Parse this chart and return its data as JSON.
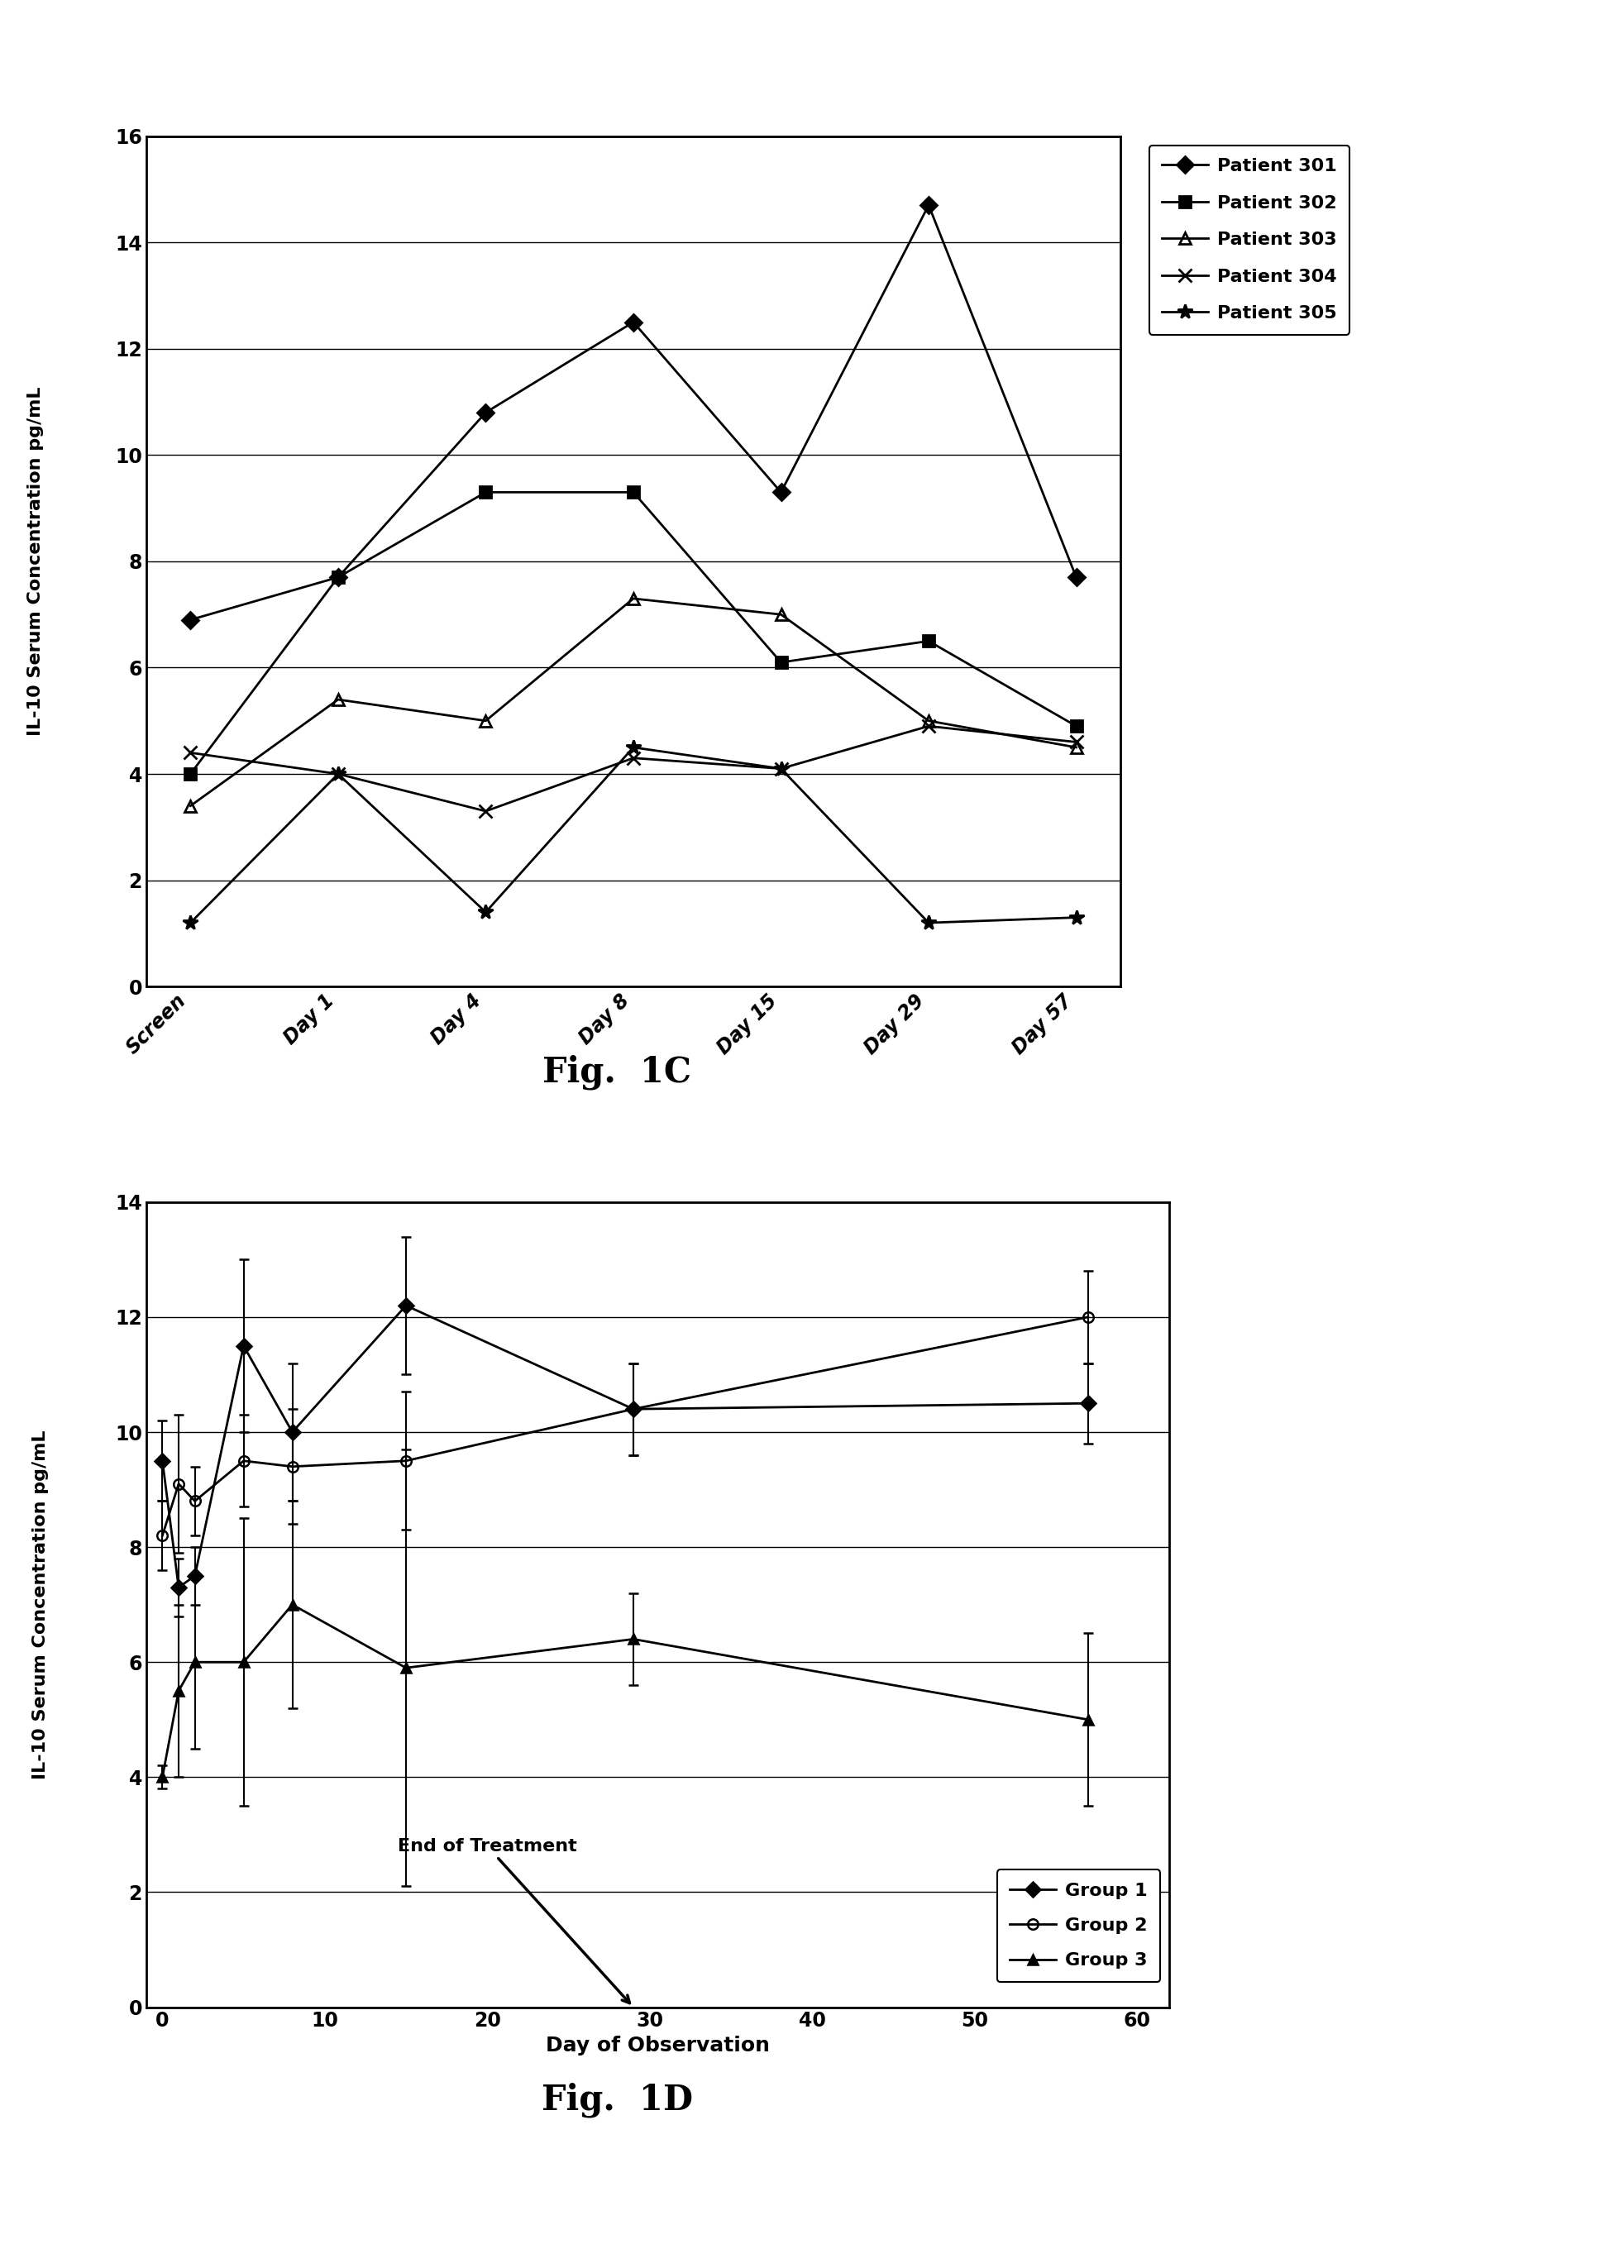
{
  "fig1c": {
    "title": "Fig.  1C",
    "ylabel": "IL-10 Serum Concentration pg/mL",
    "xtick_labels": [
      "Screen",
      "Day 1",
      "Day 4",
      "Day 8",
      "Day 15",
      "Day 29",
      "Day 57"
    ],
    "ylim": [
      0,
      16
    ],
    "yticks": [
      0,
      2,
      4,
      6,
      8,
      10,
      12,
      14,
      16
    ],
    "patients": {
      "Patient 301": {
        "values": [
          6.9,
          7.7,
          10.8,
          12.5,
          9.3,
          14.7,
          7.7
        ],
        "marker": "D",
        "fillstyle": "full",
        "ms": 10
      },
      "Patient 302": {
        "values": [
          4.0,
          7.7,
          9.3,
          9.3,
          6.1,
          6.5,
          4.9
        ],
        "marker": "s",
        "fillstyle": "full",
        "ms": 10
      },
      "Patient 303": {
        "values": [
          3.4,
          5.4,
          5.0,
          7.3,
          7.0,
          5.0,
          4.5
        ],
        "marker": "^",
        "fillstyle": "none",
        "ms": 10
      },
      "Patient 304": {
        "values": [
          4.4,
          4.0,
          3.3,
          4.3,
          4.1,
          4.9,
          4.6
        ],
        "marker": "x",
        "fillstyle": "full",
        "ms": 11
      },
      "Patient 305": {
        "values": [
          1.2,
          4.0,
          1.4,
          4.5,
          4.1,
          1.2,
          1.3
        ],
        "marker": "*",
        "fillstyle": "full",
        "ms": 13
      }
    }
  },
  "fig1d": {
    "title": "Fig.  1D",
    "ylabel": "IL-10 Serum Concentration pg/mL",
    "xlabel": "Day of Observation",
    "ylim": [
      0,
      14
    ],
    "yticks": [
      0,
      2,
      4,
      6,
      8,
      10,
      12,
      14
    ],
    "xlim": [
      -1,
      62
    ],
    "xticks": [
      0,
      10,
      20,
      30,
      40,
      50,
      60
    ],
    "groups": {
      "Group 1": {
        "x": [
          0,
          1,
          2,
          5,
          8,
          15,
          29,
          57
        ],
        "y": [
          9.5,
          7.3,
          7.5,
          11.5,
          10.0,
          12.2,
          10.4,
          10.5
        ],
        "yerr_low": [
          0.7,
          0.5,
          0.5,
          1.5,
          1.2,
          1.2,
          0.8,
          0.7
        ],
        "yerr_high": [
          0.7,
          0.5,
          0.5,
          1.5,
          1.2,
          1.2,
          0.8,
          0.7
        ],
        "marker": "D",
        "fillstyle": "full",
        "ms": 9
      },
      "Group 2": {
        "x": [
          0,
          1,
          2,
          5,
          8,
          15,
          29,
          57
        ],
        "y": [
          8.2,
          9.1,
          8.8,
          9.5,
          9.4,
          9.5,
          10.4,
          12.0
        ],
        "yerr_low": [
          0.6,
          1.2,
          0.6,
          0.8,
          1.0,
          1.2,
          0.8,
          0.8
        ],
        "yerr_high": [
          0.6,
          1.2,
          0.6,
          0.8,
          1.0,
          1.2,
          0.8,
          0.8
        ],
        "marker": "o",
        "fillstyle": "none",
        "ms": 9
      },
      "Group 3": {
        "x": [
          0,
          1,
          2,
          5,
          8,
          15,
          29,
          57
        ],
        "y": [
          4.0,
          5.5,
          6.0,
          6.0,
          7.0,
          5.9,
          6.4,
          5.0
        ],
        "yerr_low": [
          0.2,
          1.5,
          1.5,
          2.5,
          1.8,
          3.8,
          0.8,
          1.5
        ],
        "yerr_high": [
          0.2,
          1.5,
          1.5,
          2.5,
          1.8,
          3.8,
          0.8,
          1.5
        ],
        "marker": "^",
        "fillstyle": "full",
        "ms": 9
      }
    },
    "end_of_treatment_x": 29,
    "end_of_treatment_label": "End of Treatment"
  }
}
